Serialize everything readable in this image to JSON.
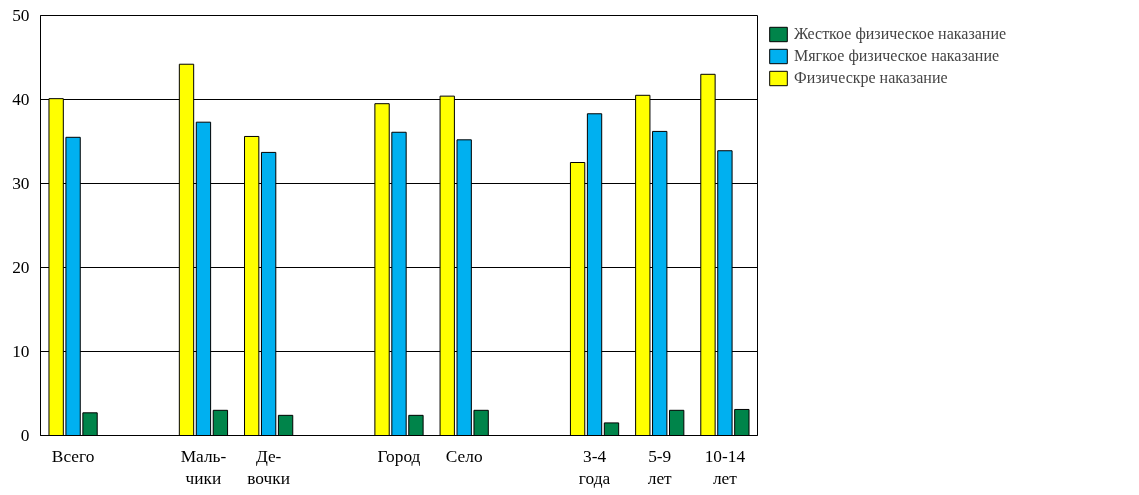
{
  "chart_data": {
    "type": "bar",
    "categories": [
      "Всего",
      null,
      "Маль-\nчики",
      "Де-\nвочки",
      null,
      "Город",
      "Село",
      null,
      "3-4\nгода",
      "5-9\nлет",
      "10-14\nлет"
    ],
    "series": [
      {
        "name": "Физическре наказание",
        "color": "#ffff00",
        "values": [
          40.1,
          null,
          44.2,
          35.6,
          null,
          39.5,
          40.4,
          null,
          32.5,
          40.5,
          43.0
        ]
      },
      {
        "name": "Мягкое физическое наказание",
        "color": "#00b0f0",
        "values": [
          35.5,
          null,
          37.3,
          33.7,
          null,
          36.1,
          35.2,
          null,
          38.3,
          36.2,
          33.9
        ]
      },
      {
        "name": "Жесткое физическое наказание",
        "color": "#00844a",
        "values": [
          2.7,
          null,
          3.0,
          2.4,
          null,
          2.4,
          3.0,
          null,
          1.5,
          3.0,
          3.1
        ]
      }
    ],
    "ylim": [
      0,
      50
    ],
    "yticks": [
      0,
      10,
      20,
      30,
      40,
      50
    ],
    "grid": "y",
    "legend": "top right"
  }
}
